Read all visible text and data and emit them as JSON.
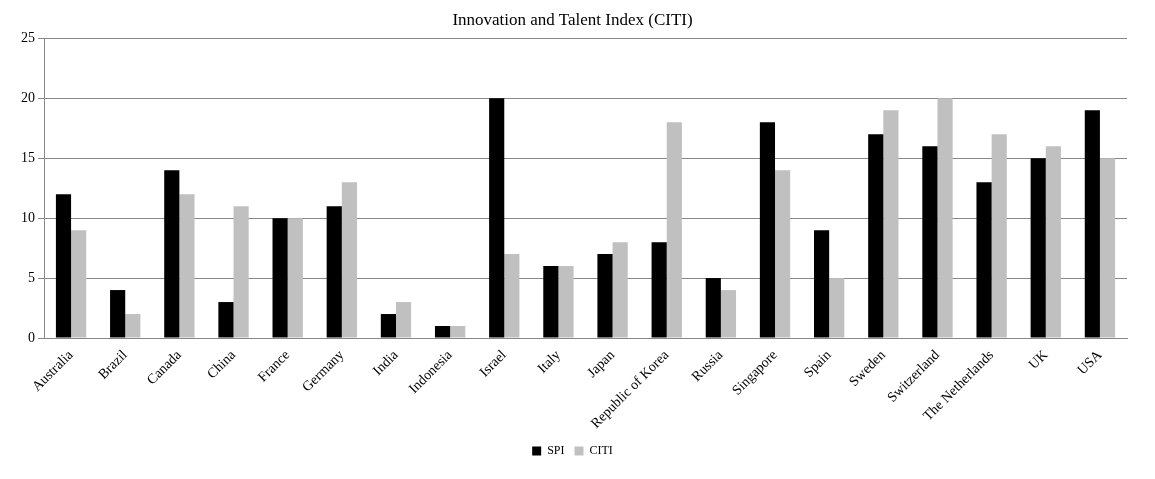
{
  "chart_data": {
    "type": "bar",
    "title": "Innovation and Talent Index (CITI)",
    "categories": [
      "Australia",
      "Brazil",
      "Canada",
      "China",
      "France",
      "Germany",
      "India",
      "Indonesia",
      "Israel",
      "Italy",
      "Japan",
      "Republic of Korea",
      "Russia",
      "Singapore",
      "Spain",
      "Sweden",
      "Switzerland",
      "The Netherlands",
      "UK",
      "USA"
    ],
    "series": [
      {
        "name": "SPI",
        "color": "#000000",
        "values": [
          12,
          4,
          14,
          3,
          10,
          11,
          2,
          1,
          20,
          6,
          7,
          8,
          5,
          18,
          9,
          17,
          16,
          13,
          15,
          19
        ]
      },
      {
        "name": "CITI",
        "color": "#c0c0c0",
        "values": [
          9,
          2,
          12,
          11,
          10,
          13,
          3,
          1,
          7,
          6,
          8,
          18,
          4,
          14,
          5,
          19,
          20,
          17,
          16,
          15
        ]
      }
    ],
    "ylim": [
      0,
      25
    ],
    "yticks": [
      0,
      5,
      10,
      15,
      20,
      25
    ],
    "grid": "y",
    "legend": "bottom"
  }
}
